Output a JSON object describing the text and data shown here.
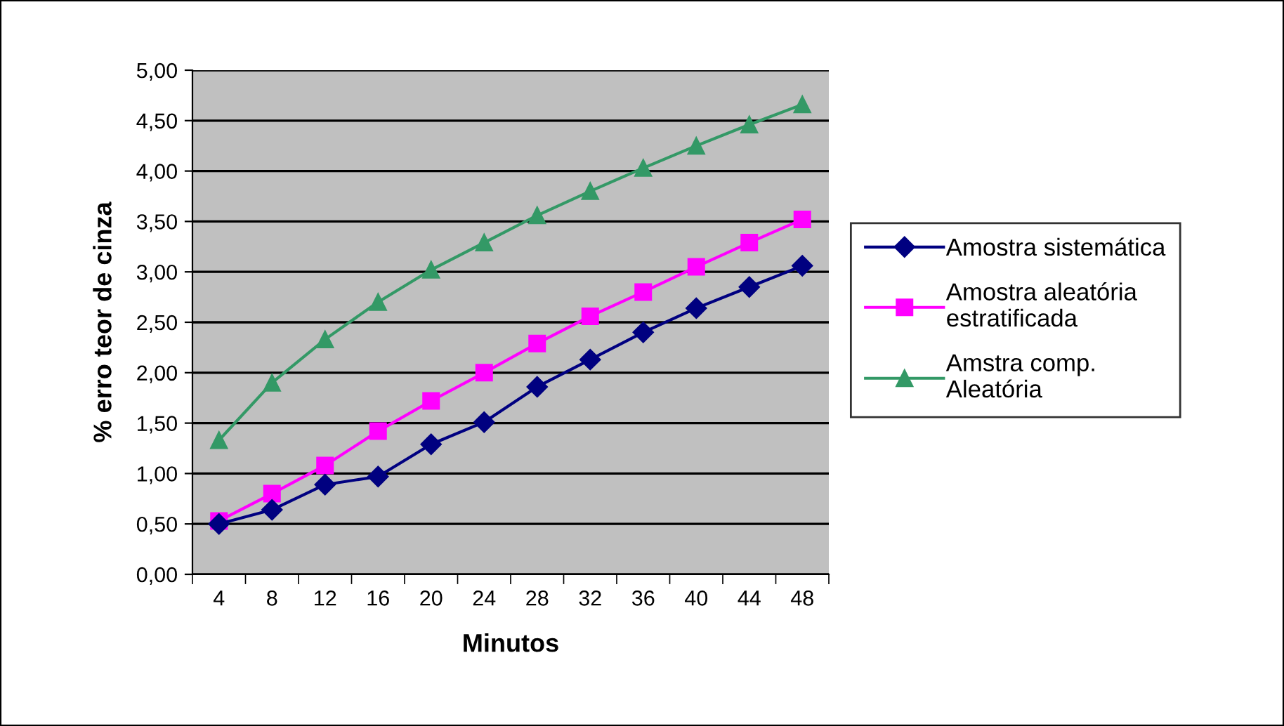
{
  "chart_data": {
    "type": "line",
    "xlabel": "Minutos",
    "ylabel": "% erro teor de cinza",
    "categories": [
      "4",
      "8",
      "12",
      "16",
      "20",
      "24",
      "28",
      "32",
      "36",
      "40",
      "44",
      "48"
    ],
    "series": [
      {
        "name": "Amostra sistemática",
        "color": "#000080",
        "marker": "diamond",
        "values": [
          0.5,
          0.64,
          0.89,
          0.97,
          1.29,
          1.51,
          1.86,
          2.13,
          2.4,
          2.64,
          2.85,
          3.06
        ]
      },
      {
        "name": "Amostra aleatória\nestratificada",
        "color": "#ff00ff",
        "marker": "square",
        "values": [
          0.53,
          0.8,
          1.08,
          1.42,
          1.72,
          2.0,
          2.29,
          2.56,
          2.8,
          3.05,
          3.29,
          3.52
        ]
      },
      {
        "name": "Amstra comp.\nAleatória",
        "color": "#339966",
        "marker": "triangle",
        "values": [
          1.33,
          1.9,
          2.33,
          2.7,
          3.02,
          3.29,
          3.56,
          3.8,
          4.03,
          4.25,
          4.46,
          4.66
        ]
      }
    ],
    "ylim": [
      0,
      5
    ],
    "yticks": [
      {
        "value": 0,
        "label": "0,00"
      },
      {
        "value": 0.5,
        "label": "0,50"
      },
      {
        "value": 1,
        "label": "1,00"
      },
      {
        "value": 1.5,
        "label": "1,50"
      },
      {
        "value": 2,
        "label": "2,00"
      },
      {
        "value": 2.5,
        "label": "2,50"
      },
      {
        "value": 3,
        "label": "3,00"
      },
      {
        "value": 3.5,
        "label": "3,50"
      },
      {
        "value": 4,
        "label": "4,00"
      },
      {
        "value": 4.5,
        "label": "4,50"
      },
      {
        "value": 5,
        "label": "5,00"
      }
    ],
    "grid": "y",
    "legend": "right",
    "line_style": "solid"
  }
}
